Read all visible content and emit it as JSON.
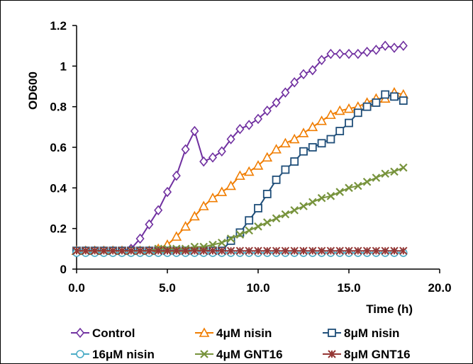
{
  "chart_data": {
    "type": "line",
    "title": "",
    "xlabel": "Time (h)",
    "ylabel": "OD600",
    "xlim": [
      0,
      20
    ],
    "ylim": [
      0,
      1.2
    ],
    "xticks": [
      0,
      5,
      10,
      15,
      20
    ],
    "xtick_labels": [
      "0.0",
      "5.0",
      "10.0",
      "15.0",
      "20.0"
    ],
    "yticks": [
      0,
      0.2,
      0.4,
      0.6,
      0.8,
      1,
      1.2
    ],
    "ytick_labels": [
      "0",
      "0.2",
      "0.4",
      "0.6",
      "0.8",
      "1",
      "1.2"
    ],
    "grid": false,
    "legend_position": "bottom",
    "x": [
      0,
      0.5,
      1,
      1.5,
      2,
      2.5,
      3,
      3.5,
      4,
      4.5,
      5,
      5.5,
      6,
      6.5,
      7,
      7.5,
      8,
      8.5,
      9,
      9.5,
      10,
      10.5,
      11,
      11.5,
      12,
      12.5,
      13,
      13.5,
      14,
      14.5,
      15,
      15.5,
      16,
      16.5,
      17,
      17.5,
      18
    ],
    "series": [
      {
        "name": "Control",
        "marker": "diamond",
        "color": "#7030a0",
        "values": [
          0.09,
          0.09,
          0.09,
          0.09,
          0.09,
          0.09,
          0.1,
          0.15,
          0.22,
          0.29,
          0.38,
          0.46,
          0.59,
          0.68,
          0.53,
          0.55,
          0.58,
          0.64,
          0.69,
          0.71,
          0.74,
          0.78,
          0.82,
          0.87,
          0.92,
          0.96,
          0.98,
          1.03,
          1.06,
          1.06,
          1.06,
          1.06,
          1.07,
          1.08,
          1.1,
          1.09,
          1.1
        ]
      },
      {
        "name": "4μM nisin",
        "marker": "triangle",
        "color": "#f07d00",
        "values": [
          0.09,
          0.09,
          0.09,
          0.09,
          0.09,
          0.09,
          0.09,
          0.09,
          0.09,
          0.1,
          0.12,
          0.16,
          0.21,
          0.26,
          0.31,
          0.35,
          0.38,
          0.41,
          0.46,
          0.48,
          0.51,
          0.55,
          0.59,
          0.62,
          0.64,
          0.67,
          0.7,
          0.73,
          0.76,
          0.78,
          0.79,
          0.8,
          0.82,
          0.84,
          0.84,
          0.87,
          0.86
        ]
      },
      {
        "name": "8μM nisin",
        "marker": "square",
        "color": "#1f4e79",
        "values": [
          0.09,
          0.09,
          0.09,
          0.09,
          0.09,
          0.09,
          0.09,
          0.09,
          0.09,
          0.09,
          0.09,
          0.09,
          0.09,
          0.09,
          0.09,
          0.09,
          0.09,
          0.14,
          0.18,
          0.24,
          0.3,
          0.37,
          0.44,
          0.49,
          0.53,
          0.58,
          0.6,
          0.62,
          0.64,
          0.68,
          0.72,
          0.77,
          0.8,
          0.82,
          0.86,
          0.85,
          0.83
        ]
      },
      {
        "name": "16μM nisin",
        "marker": "circle",
        "color": "#4bacc6",
        "values": [
          0.08,
          0.08,
          0.08,
          0.08,
          0.08,
          0.08,
          0.08,
          0.08,
          0.08,
          0.08,
          0.08,
          0.08,
          0.08,
          0.08,
          0.08,
          0.08,
          0.08,
          0.08,
          0.08,
          0.08,
          0.08,
          0.08,
          0.08,
          0.08,
          0.08,
          0.08,
          0.08,
          0.08,
          0.08,
          0.08,
          0.08,
          0.08,
          0.08,
          0.08,
          0.08,
          0.08,
          0.08
        ]
      },
      {
        "name": "4μM GNT16",
        "marker": "x",
        "color": "#77933c",
        "values": [
          0.09,
          0.09,
          0.09,
          0.09,
          0.09,
          0.09,
          0.09,
          0.09,
          0.09,
          0.1,
          0.1,
          0.1,
          0.1,
          0.11,
          0.11,
          0.12,
          0.13,
          0.15,
          0.17,
          0.19,
          0.21,
          0.23,
          0.25,
          0.27,
          0.29,
          0.31,
          0.33,
          0.35,
          0.36,
          0.38,
          0.4,
          0.41,
          0.43,
          0.45,
          0.47,
          0.48,
          0.5
        ]
      },
      {
        "name": "8μM GNT16",
        "marker": "star",
        "color": "#953735",
        "values": [
          0.09,
          0.09,
          0.09,
          0.09,
          0.09,
          0.09,
          0.09,
          0.09,
          0.09,
          0.09,
          0.09,
          0.09,
          0.09,
          0.09,
          0.09,
          0.09,
          0.09,
          0.09,
          0.09,
          0.09,
          0.09,
          0.09,
          0.09,
          0.09,
          0.09,
          0.09,
          0.09,
          0.09,
          0.09,
          0.09,
          0.09,
          0.09,
          0.09,
          0.09,
          0.09,
          0.09,
          0.09
        ]
      }
    ]
  }
}
